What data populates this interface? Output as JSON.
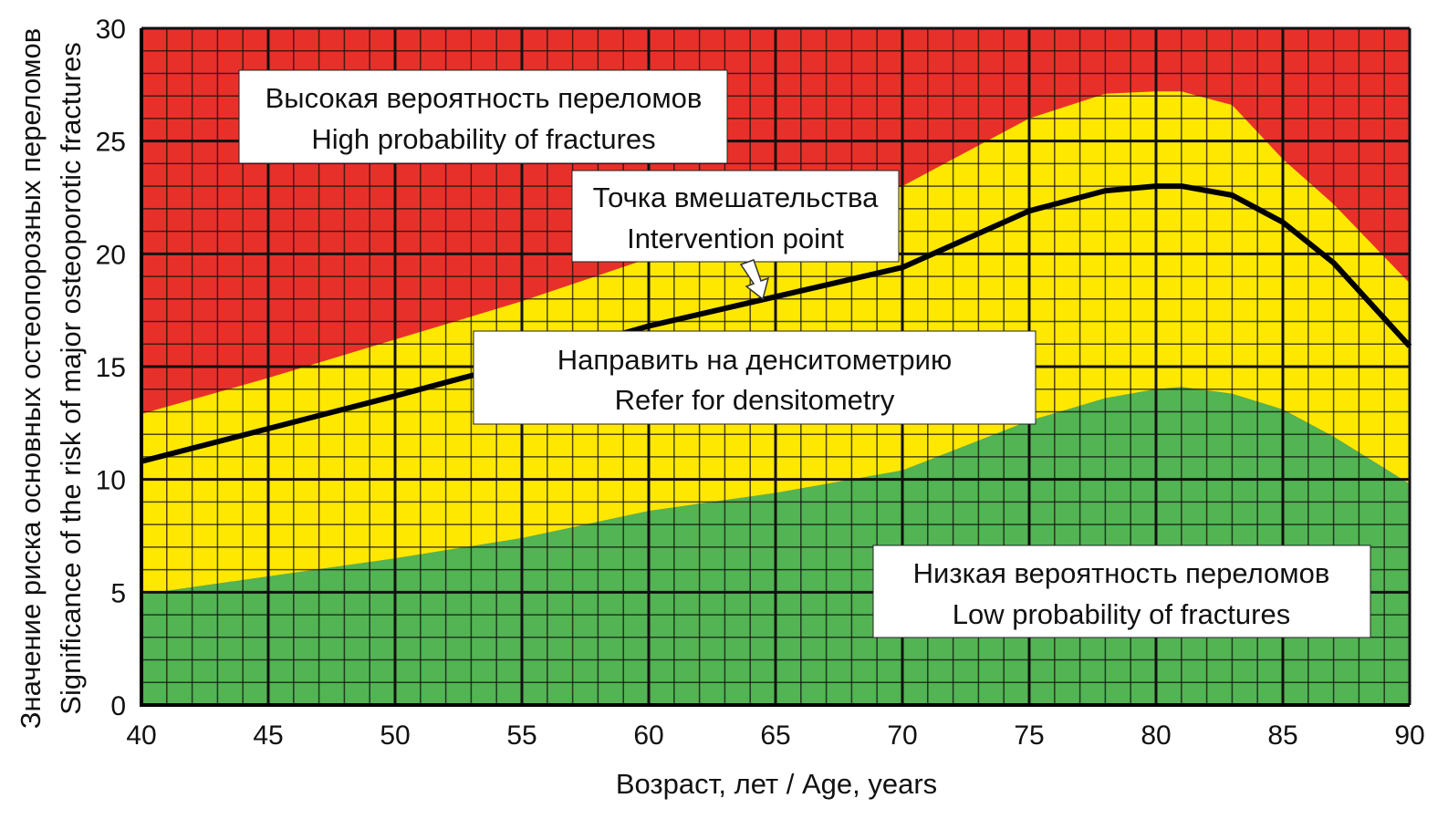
{
  "chart_data": {
    "type": "area",
    "title": "",
    "xlabel": "Возраст, лет / Age, years",
    "ylabel": [
      "Значение риска основных остеопорозных переломов",
      "Significance of the risk of major osteoporotic fractures"
    ],
    "xlim": [
      40,
      90
    ],
    "ylim": [
      0,
      30
    ],
    "x_ticks": [
      "40",
      "45",
      "50",
      "55",
      "60",
      "65",
      "70",
      "75",
      "80",
      "85",
      "90"
    ],
    "y_ticks": [
      "0",
      "5",
      "10",
      "15",
      "20",
      "25",
      "30"
    ],
    "grid": true,
    "colors": {
      "high": "#e8302a",
      "mid": "#ffe800",
      "low": "#52b452",
      "line": "#000000"
    },
    "x": [
      40,
      45,
      50,
      55,
      60,
      65,
      70,
      75,
      78,
      80,
      81,
      83,
      85,
      87,
      90
    ],
    "series": [
      {
        "name": "upper_threshold",
        "values": [
          12.9,
          14.5,
          16.2,
          17.9,
          19.8,
          21.4,
          23.0,
          26.0,
          27.1,
          27.2,
          27.2,
          26.6,
          24.2,
          22.2,
          18.7
        ]
      },
      {
        "name": "intervention_threshold",
        "values": [
          10.8,
          12.25,
          13.7,
          15.2,
          16.8,
          18.1,
          19.4,
          21.9,
          22.8,
          23.0,
          23.0,
          22.6,
          21.4,
          19.6,
          15.9
        ]
      },
      {
        "name": "lower_threshold",
        "values": [
          4.9,
          5.7,
          6.5,
          7.4,
          8.6,
          9.4,
          10.4,
          12.6,
          13.6,
          14.0,
          14.1,
          13.8,
          13.1,
          11.9,
          9.8
        ]
      }
    ],
    "annotations": {
      "high": [
        "Высокая вероятность переломов",
        "High probability of fractures"
      ],
      "intervention": [
        "Точка вмешательства",
        "Intervention point"
      ],
      "refer": [
        "Направить на денситометрию",
        "Refer for densitometry"
      ],
      "low": [
        "Низкая вероятность переломов",
        "Low probability of fractures"
      ]
    }
  }
}
